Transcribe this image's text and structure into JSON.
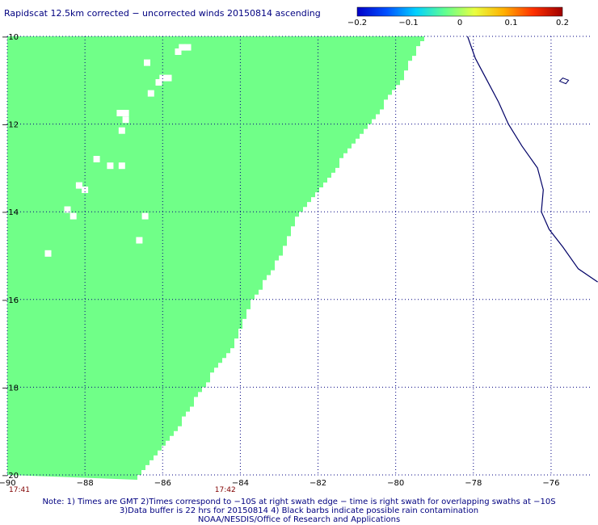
{
  "title": "Rapidscat 12.5km corrected − uncorrected winds 20150814 ascending",
  "colorbar": {
    "ticks": [
      "−0.2",
      "−0.1",
      "0",
      "0.1",
      "0.2"
    ],
    "tick_values": [
      -0.2,
      -0.1,
      0,
      0.1,
      0.2
    ],
    "colors": [
      "#0000c8",
      "#0050ff",
      "#00d0ff",
      "#60ff90",
      "#e8ff40",
      "#ffb000",
      "#ff3000",
      "#a00000"
    ]
  },
  "map": {
    "lon_range": [
      -90,
      -75
    ],
    "lat_range": [
      -20,
      -10
    ],
    "lat_labels": [
      "−10",
      "−12",
      "−14",
      "−16",
      "−18",
      "−20"
    ],
    "lat_values": [
      -10,
      -12,
      -14,
      -16,
      -18,
      -20
    ],
    "lon_labels": [
      "−90",
      "−88",
      "−86",
      "−84",
      "−82",
      "−80",
      "−78",
      "−76"
    ],
    "lon_values": [
      -90,
      -88,
      -86,
      -84,
      -82,
      -80,
      -78,
      -76
    ],
    "swath_color": "#70ff88",
    "coast_color": "#000066",
    "swath_edge": [
      {
        "lat": -10.0,
        "lon": -79.3
      },
      {
        "lat": -11.0,
        "lon": -79.9
      },
      {
        "lat": -12.0,
        "lon": -80.7
      },
      {
        "lat": -13.0,
        "lon": -81.6
      },
      {
        "lat": -14.0,
        "lon": -82.5
      },
      {
        "lat": -15.0,
        "lon": -83.0
      },
      {
        "lat": -16.0,
        "lon": -83.7
      },
      {
        "lat": -17.0,
        "lon": -84.2
      },
      {
        "lat": -18.0,
        "lon": -85.0
      },
      {
        "lat": -19.0,
        "lon": -85.7
      },
      {
        "lat": -20.0,
        "lon": -86.6
      }
    ],
    "missing_cells": [
      {
        "lat": -10.25,
        "lon": -85.5
      },
      {
        "lat": -10.25,
        "lon": -85.35
      },
      {
        "lat": -10.35,
        "lon": -85.6
      },
      {
        "lat": -10.6,
        "lon": -86.4
      },
      {
        "lat": -10.95,
        "lon": -86.0
      },
      {
        "lat": -10.95,
        "lon": -85.85
      },
      {
        "lat": -11.05,
        "lon": -86.1
      },
      {
        "lat": -11.3,
        "lon": -86.3
      },
      {
        "lat": -11.75,
        "lon": -87.1
      },
      {
        "lat": -11.75,
        "lon": -86.95
      },
      {
        "lat": -11.9,
        "lon": -86.95
      },
      {
        "lat": -12.15,
        "lon": -87.05
      },
      {
        "lat": -12.8,
        "lon": -87.7
      },
      {
        "lat": -12.95,
        "lon": -87.35
      },
      {
        "lat": -12.95,
        "lon": -87.05
      },
      {
        "lat": -13.4,
        "lon": -88.15
      },
      {
        "lat": -13.5,
        "lon": -88.0
      },
      {
        "lat": -13.95,
        "lon": -88.45
      },
      {
        "lat": -14.1,
        "lon": -88.3
      },
      {
        "lat": -14.1,
        "lon": -86.45
      },
      {
        "lat": -14.65,
        "lon": -86.6
      },
      {
        "lat": -14.95,
        "lon": -88.95
      }
    ],
    "coastline": [
      {
        "lat": -10.0,
        "lon": -78.15
      },
      {
        "lat": -10.5,
        "lon": -77.95
      },
      {
        "lat": -11.0,
        "lon": -77.65
      },
      {
        "lat": -11.5,
        "lon": -77.35
      },
      {
        "lat": -12.0,
        "lon": -77.1
      },
      {
        "lat": -12.5,
        "lon": -76.75
      },
      {
        "lat": -13.0,
        "lon": -76.35
      },
      {
        "lat": -13.5,
        "lon": -76.2
      },
      {
        "lat": -14.0,
        "lon": -76.25
      },
      {
        "lat": -14.4,
        "lon": -76.05
      },
      {
        "lat": -14.8,
        "lon": -75.7
      },
      {
        "lat": -15.3,
        "lon": -75.3
      },
      {
        "lat": -15.6,
        "lon": -74.8
      }
    ],
    "island": [
      {
        "lat": -10.95,
        "lon": -75.7
      },
      {
        "lat": -11.0,
        "lon": -75.55
      },
      {
        "lat": -11.08,
        "lon": -75.62
      },
      {
        "lat": -11.02,
        "lon": -75.78
      }
    ]
  },
  "times": [
    {
      "label": "17:41",
      "lon": -90
    },
    {
      "label": "17:42",
      "lon": -84.7
    }
  ],
  "notes": [
    "Note: 1) Times are GMT 2)Times correspond to −10S at right swath edge − time is right swath for overlapping swaths at −10S",
    "3)Data buffer is 22 hrs for 20150814 4) Black barbs indicate possible rain contamination",
    "NOAA/NESDIS/Office of Research and Applications"
  ]
}
